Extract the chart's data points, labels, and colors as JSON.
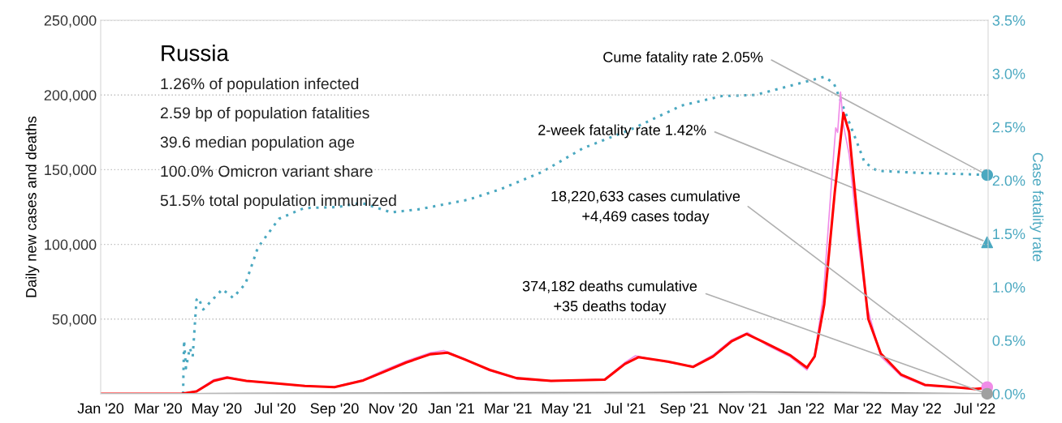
{
  "chart_data": {
    "type": "line",
    "title": "Russia",
    "annotations": [
      "1.26% of population infected",
      "2.59 bp of population fatalities",
      "39.6 median population age",
      "100.0% Omicron variant share",
      "51.5% total population immunized"
    ],
    "ylabel": "Daily new cases and deaths",
    "y2label": "Case fatality rate",
    "xlim": [
      "2020-01-01",
      "2022-07-15"
    ],
    "xticks": [
      {
        "value": "2020-01-01",
        "label": "Jan '20"
      },
      {
        "value": "2020-03-01",
        "label": "Mar '20"
      },
      {
        "value": "2020-05-01",
        "label": "May '20"
      },
      {
        "value": "2020-07-01",
        "label": "Jul '20"
      },
      {
        "value": "2020-09-01",
        "label": "Sep '20"
      },
      {
        "value": "2020-11-01",
        "label": "Nov '20"
      },
      {
        "value": "2021-01-01",
        "label": "Jan '21"
      },
      {
        "value": "2021-03-01",
        "label": "Mar '21"
      },
      {
        "value": "2021-05-01",
        "label": "May '21"
      },
      {
        "value": "2021-07-01",
        "label": "Jul '21"
      },
      {
        "value": "2021-09-01",
        "label": "Sep '21"
      },
      {
        "value": "2021-11-01",
        "label": "Nov '21"
      },
      {
        "value": "2022-01-01",
        "label": "Jan '22"
      },
      {
        "value": "2022-03-01",
        "label": "Mar '22"
      },
      {
        "value": "2022-05-01",
        "label": "May '22"
      },
      {
        "value": "2022-07-01",
        "label": "Jul '22"
      }
    ],
    "ylim": [
      0,
      250000
    ],
    "yticks": [
      {
        "value": 50000,
        "label": "50,000"
      },
      {
        "value": 100000,
        "label": "100,000"
      },
      {
        "value": 150000,
        "label": "150,000"
      },
      {
        "value": 200000,
        "label": "200,000"
      },
      {
        "value": 250000,
        "label": "250,000"
      }
    ],
    "y2lim": [
      0,
      3.5
    ],
    "y2ticks": [
      {
        "value": 0,
        "label": "0.0%"
      },
      {
        "value": 0.5,
        "label": "0.5%"
      },
      {
        "value": 1,
        "label": "1.0%"
      },
      {
        "value": 1.5,
        "label": "1.5%"
      },
      {
        "value": 2,
        "label": "2.0%"
      },
      {
        "value": 2.5,
        "label": "2.5%"
      },
      {
        "value": 3,
        "label": "3.0%"
      },
      {
        "value": 3.5,
        "label": "3.5%"
      }
    ],
    "grid": "y",
    "series": [
      {
        "color": "#f08ce8",
        "line_style": "solid",
        "x": [
          "2020-01-01",
          "2020-03-25",
          "2020-04-10",
          "2020-04-28",
          "2020-05-12",
          "2020-06-01",
          "2020-07-01",
          "2020-08-01",
          "2020-09-01",
          "2020-10-01",
          "2020-10-20",
          "2020-11-15",
          "2020-12-10",
          "2020-12-24",
          "2021-01-15",
          "2021-02-10",
          "2021-03-10",
          "2021-04-15",
          "2021-06-10",
          "2021-07-01",
          "2021-07-12",
          "2021-08-15",
          "2021-09-10",
          "2021-10-01",
          "2021-10-20",
          "2021-11-06",
          "2021-11-25",
          "2021-12-20",
          "2022-01-07",
          "2022-01-15",
          "2022-01-24",
          "2022-02-02",
          "2022-02-06",
          "2022-02-08",
          "2022-02-11",
          "2022-02-14",
          "2022-02-20",
          "2022-03-01",
          "2022-03-10",
          "2022-03-25",
          "2022-04-15",
          "2022-05-10",
          "2022-06-10",
          "2022-07-01",
          "2022-07-14"
        ],
        "values": [
          0,
          0,
          2000,
          9500,
          11500,
          8500,
          6800,
          5200,
          4700,
          9500,
          15000,
          22000,
          27500,
          29000,
          23500,
          15500,
          10000,
          8500,
          9800,
          21000,
          25500,
          21000,
          18500,
          26000,
          36000,
          41000,
          33000,
          25000,
          16000,
          26000,
          65000,
          145000,
          178000,
          175000,
          202000,
          180000,
          160000,
          105000,
          60000,
          25000,
          12000,
          5500,
          4200,
          3200,
          4500
        ]
      },
      {
        "color": "#ff0000",
        "line_style": "solid",
        "x": [
          "2020-01-01",
          "2020-03-25",
          "2020-04-10",
          "2020-04-28",
          "2020-05-12",
          "2020-06-01",
          "2020-07-01",
          "2020-08-01",
          "2020-09-01",
          "2020-10-01",
          "2020-10-20",
          "2020-11-15",
          "2020-12-10",
          "2020-12-28",
          "2021-01-15",
          "2021-02-10",
          "2021-03-10",
          "2021-04-15",
          "2021-06-10",
          "2021-07-01",
          "2021-07-15",
          "2021-08-15",
          "2021-09-10",
          "2021-10-01",
          "2021-10-20",
          "2021-11-05",
          "2021-11-25",
          "2021-12-20",
          "2022-01-07",
          "2022-01-15",
          "2022-01-25",
          "2022-02-05",
          "2022-02-14",
          "2022-02-20",
          "2022-03-01",
          "2022-03-12",
          "2022-03-25",
          "2022-04-15",
          "2022-05-10",
          "2022-06-10",
          "2022-07-01",
          "2022-07-14"
        ],
        "values": [
          0,
          0,
          1600,
          8700,
          10800,
          8700,
          7000,
          5300,
          4500,
          9000,
          14000,
          21000,
          26500,
          27500,
          23000,
          16000,
          10500,
          8700,
          9500,
          20000,
          24500,
          21500,
          18000,
          25000,
          35000,
          40000,
          34000,
          26000,
          17500,
          25000,
          60000,
          135000,
          188000,
          175000,
          115000,
          50000,
          27000,
          13000,
          6000,
          4500,
          3300,
          4000
        ]
      },
      {
        "color": "#a0a0a0",
        "line_style": "solid",
        "x": [
          "2020-01-01",
          "2020-04-01",
          "2020-06-01",
          "2020-12-28",
          "2021-07-15",
          "2021-11-10",
          "2022-02-25",
          "2022-07-14"
        ],
        "values": [
          0,
          0,
          200,
          600,
          800,
          1200,
          800,
          0
        ]
      },
      {
        "axis": "y2",
        "color": "#4aa8c0",
        "line_style": "dotted",
        "x": [
          "2020-03-27",
          "2020-03-28",
          "2020-03-30",
          "2020-04-03",
          "2020-04-06",
          "2020-04-10",
          "2020-04-12",
          "2020-04-17",
          "2020-05-07",
          "2020-05-18",
          "2020-05-31",
          "2020-06-13",
          "2020-07-05",
          "2020-07-31",
          "2020-09-04",
          "2020-09-29",
          "2020-10-30",
          "2020-11-29",
          "2021-01-19",
          "2021-02-22",
          "2021-04-06",
          "2021-05-18",
          "2021-07-08",
          "2021-08-29",
          "2021-10-10",
          "2021-11-14",
          "2021-12-18",
          "2022-01-25",
          "2022-02-04",
          "2022-02-15",
          "2022-02-28",
          "2022-03-08",
          "2022-03-21",
          "2022-05-04",
          "2022-06-16",
          "2022-07-14"
        ],
        "values": [
          0,
          0.5,
          0.24,
          0.43,
          0.35,
          0.88,
          0.9,
          0.79,
          0.98,
          0.9,
          1.03,
          1.37,
          1.64,
          1.74,
          1.75,
          1.79,
          1.7,
          1.73,
          1.82,
          1.92,
          2.08,
          2.3,
          2.48,
          2.7,
          2.79,
          2.8,
          2.88,
          2.97,
          2.91,
          2.66,
          2.36,
          2.17,
          2.09,
          2.07,
          2.06,
          2.05
        ]
      },
      {
        "type": "scatter",
        "axis": "y2",
        "name": "Cume fatality rate 2.05%",
        "color": "#4aa8c0",
        "marker": "circle",
        "x": [
          "2022-07-14"
        ],
        "values": [
          2.05
        ]
      },
      {
        "type": "scatter",
        "axis": "y2",
        "name": "2-week fatality rate 1.42%",
        "color": "#4aa8c0",
        "marker": "triangle",
        "x": [
          "2022-07-14"
        ],
        "values": [
          1.42
        ]
      },
      {
        "type": "scatter",
        "name": "18,220,633 cases cumulative\n+4,469 cases today",
        "color": "#f08ce8",
        "marker": "circle",
        "x": [
          "2022-07-14"
        ],
        "values": [
          4469
        ]
      },
      {
        "type": "scatter",
        "name": "374,182 deaths cumulative\n+35 deaths today",
        "color": "#a0a0a0",
        "marker": "circle",
        "x": [
          "2022-07-14"
        ],
        "values": [
          35
        ]
      }
    ]
  }
}
